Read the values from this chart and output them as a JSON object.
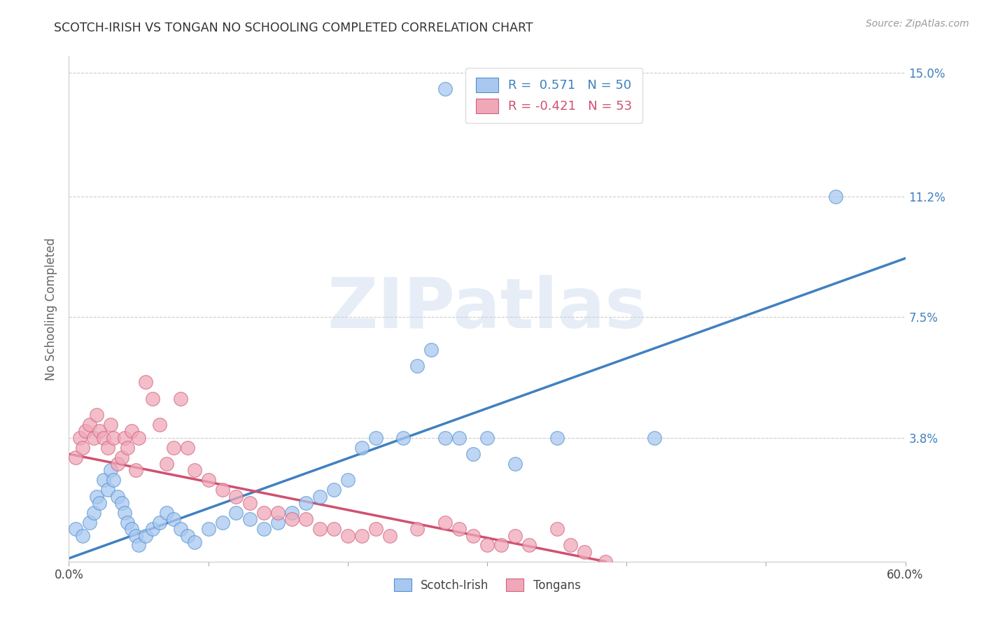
{
  "title": "SCOTCH-IRISH VS TONGAN NO SCHOOLING COMPLETED CORRELATION CHART",
  "source": "Source: ZipAtlas.com",
  "ylabel_label": "No Schooling Completed",
  "xlim": [
    0.0,
    0.6
  ],
  "ylim": [
    0.0,
    0.155
  ],
  "yticks": [
    0.0,
    0.038,
    0.075,
    0.112,
    0.15
  ],
  "ytick_labels": [
    "",
    "3.8%",
    "7.5%",
    "11.2%",
    "15.0%"
  ],
  "xticks": [
    0.0,
    0.1,
    0.2,
    0.3,
    0.4,
    0.5,
    0.6
  ],
  "xtick_labels": [
    "0.0%",
    "",
    "",
    "",
    "",
    "",
    "60.0%"
  ],
  "blue_fill": "#A8C8F0",
  "blue_edge": "#5090D0",
  "pink_fill": "#F0A8B8",
  "pink_edge": "#D06080",
  "blue_line_color": "#4080C0",
  "pink_line_color": "#D05070",
  "r_blue": 0.571,
  "n_blue": 50,
  "r_pink": -0.421,
  "n_pink": 53,
  "watermark": "ZIPatlas",
  "blue_trend_x": [
    0.0,
    0.6
  ],
  "blue_trend_y": [
    0.001,
    0.093
  ],
  "pink_trend_x": [
    0.0,
    0.385
  ],
  "pink_trend_y": [
    0.033,
    0.0
  ],
  "scotch_x": [
    0.27,
    0.55,
    0.42,
    0.005,
    0.01,
    0.015,
    0.018,
    0.02,
    0.022,
    0.025,
    0.028,
    0.03,
    0.032,
    0.035,
    0.038,
    0.04,
    0.042,
    0.045,
    0.048,
    0.05,
    0.055,
    0.06,
    0.065,
    0.07,
    0.075,
    0.08,
    0.085,
    0.09,
    0.1,
    0.11,
    0.12,
    0.13,
    0.14,
    0.15,
    0.16,
    0.17,
    0.18,
    0.19,
    0.2,
    0.21,
    0.22,
    0.24,
    0.25,
    0.26,
    0.27,
    0.28,
    0.29,
    0.3,
    0.32,
    0.35
  ],
  "scotch_y": [
    0.145,
    0.112,
    0.038,
    0.01,
    0.008,
    0.012,
    0.015,
    0.02,
    0.018,
    0.025,
    0.022,
    0.028,
    0.025,
    0.02,
    0.018,
    0.015,
    0.012,
    0.01,
    0.008,
    0.005,
    0.008,
    0.01,
    0.012,
    0.015,
    0.013,
    0.01,
    0.008,
    0.006,
    0.01,
    0.012,
    0.015,
    0.013,
    0.01,
    0.012,
    0.015,
    0.018,
    0.02,
    0.022,
    0.025,
    0.035,
    0.038,
    0.038,
    0.06,
    0.065,
    0.038,
    0.038,
    0.033,
    0.038,
    0.03,
    0.038
  ],
  "tongan_x": [
    0.005,
    0.008,
    0.01,
    0.012,
    0.015,
    0.018,
    0.02,
    0.022,
    0.025,
    0.028,
    0.03,
    0.032,
    0.035,
    0.038,
    0.04,
    0.042,
    0.045,
    0.048,
    0.05,
    0.055,
    0.06,
    0.065,
    0.07,
    0.075,
    0.08,
    0.085,
    0.09,
    0.1,
    0.11,
    0.12,
    0.13,
    0.14,
    0.15,
    0.16,
    0.17,
    0.18,
    0.19,
    0.2,
    0.21,
    0.22,
    0.23,
    0.25,
    0.27,
    0.28,
    0.29,
    0.3,
    0.31,
    0.32,
    0.33,
    0.35,
    0.36,
    0.37,
    0.385
  ],
  "tongan_y": [
    0.032,
    0.038,
    0.035,
    0.04,
    0.042,
    0.038,
    0.045,
    0.04,
    0.038,
    0.035,
    0.042,
    0.038,
    0.03,
    0.032,
    0.038,
    0.035,
    0.04,
    0.028,
    0.038,
    0.055,
    0.05,
    0.042,
    0.03,
    0.035,
    0.05,
    0.035,
    0.028,
    0.025,
    0.022,
    0.02,
    0.018,
    0.015,
    0.015,
    0.013,
    0.013,
    0.01,
    0.01,
    0.008,
    0.008,
    0.01,
    0.008,
    0.01,
    0.012,
    0.01,
    0.008,
    0.005,
    0.005,
    0.008,
    0.005,
    0.01,
    0.005,
    0.003,
    0.0
  ]
}
